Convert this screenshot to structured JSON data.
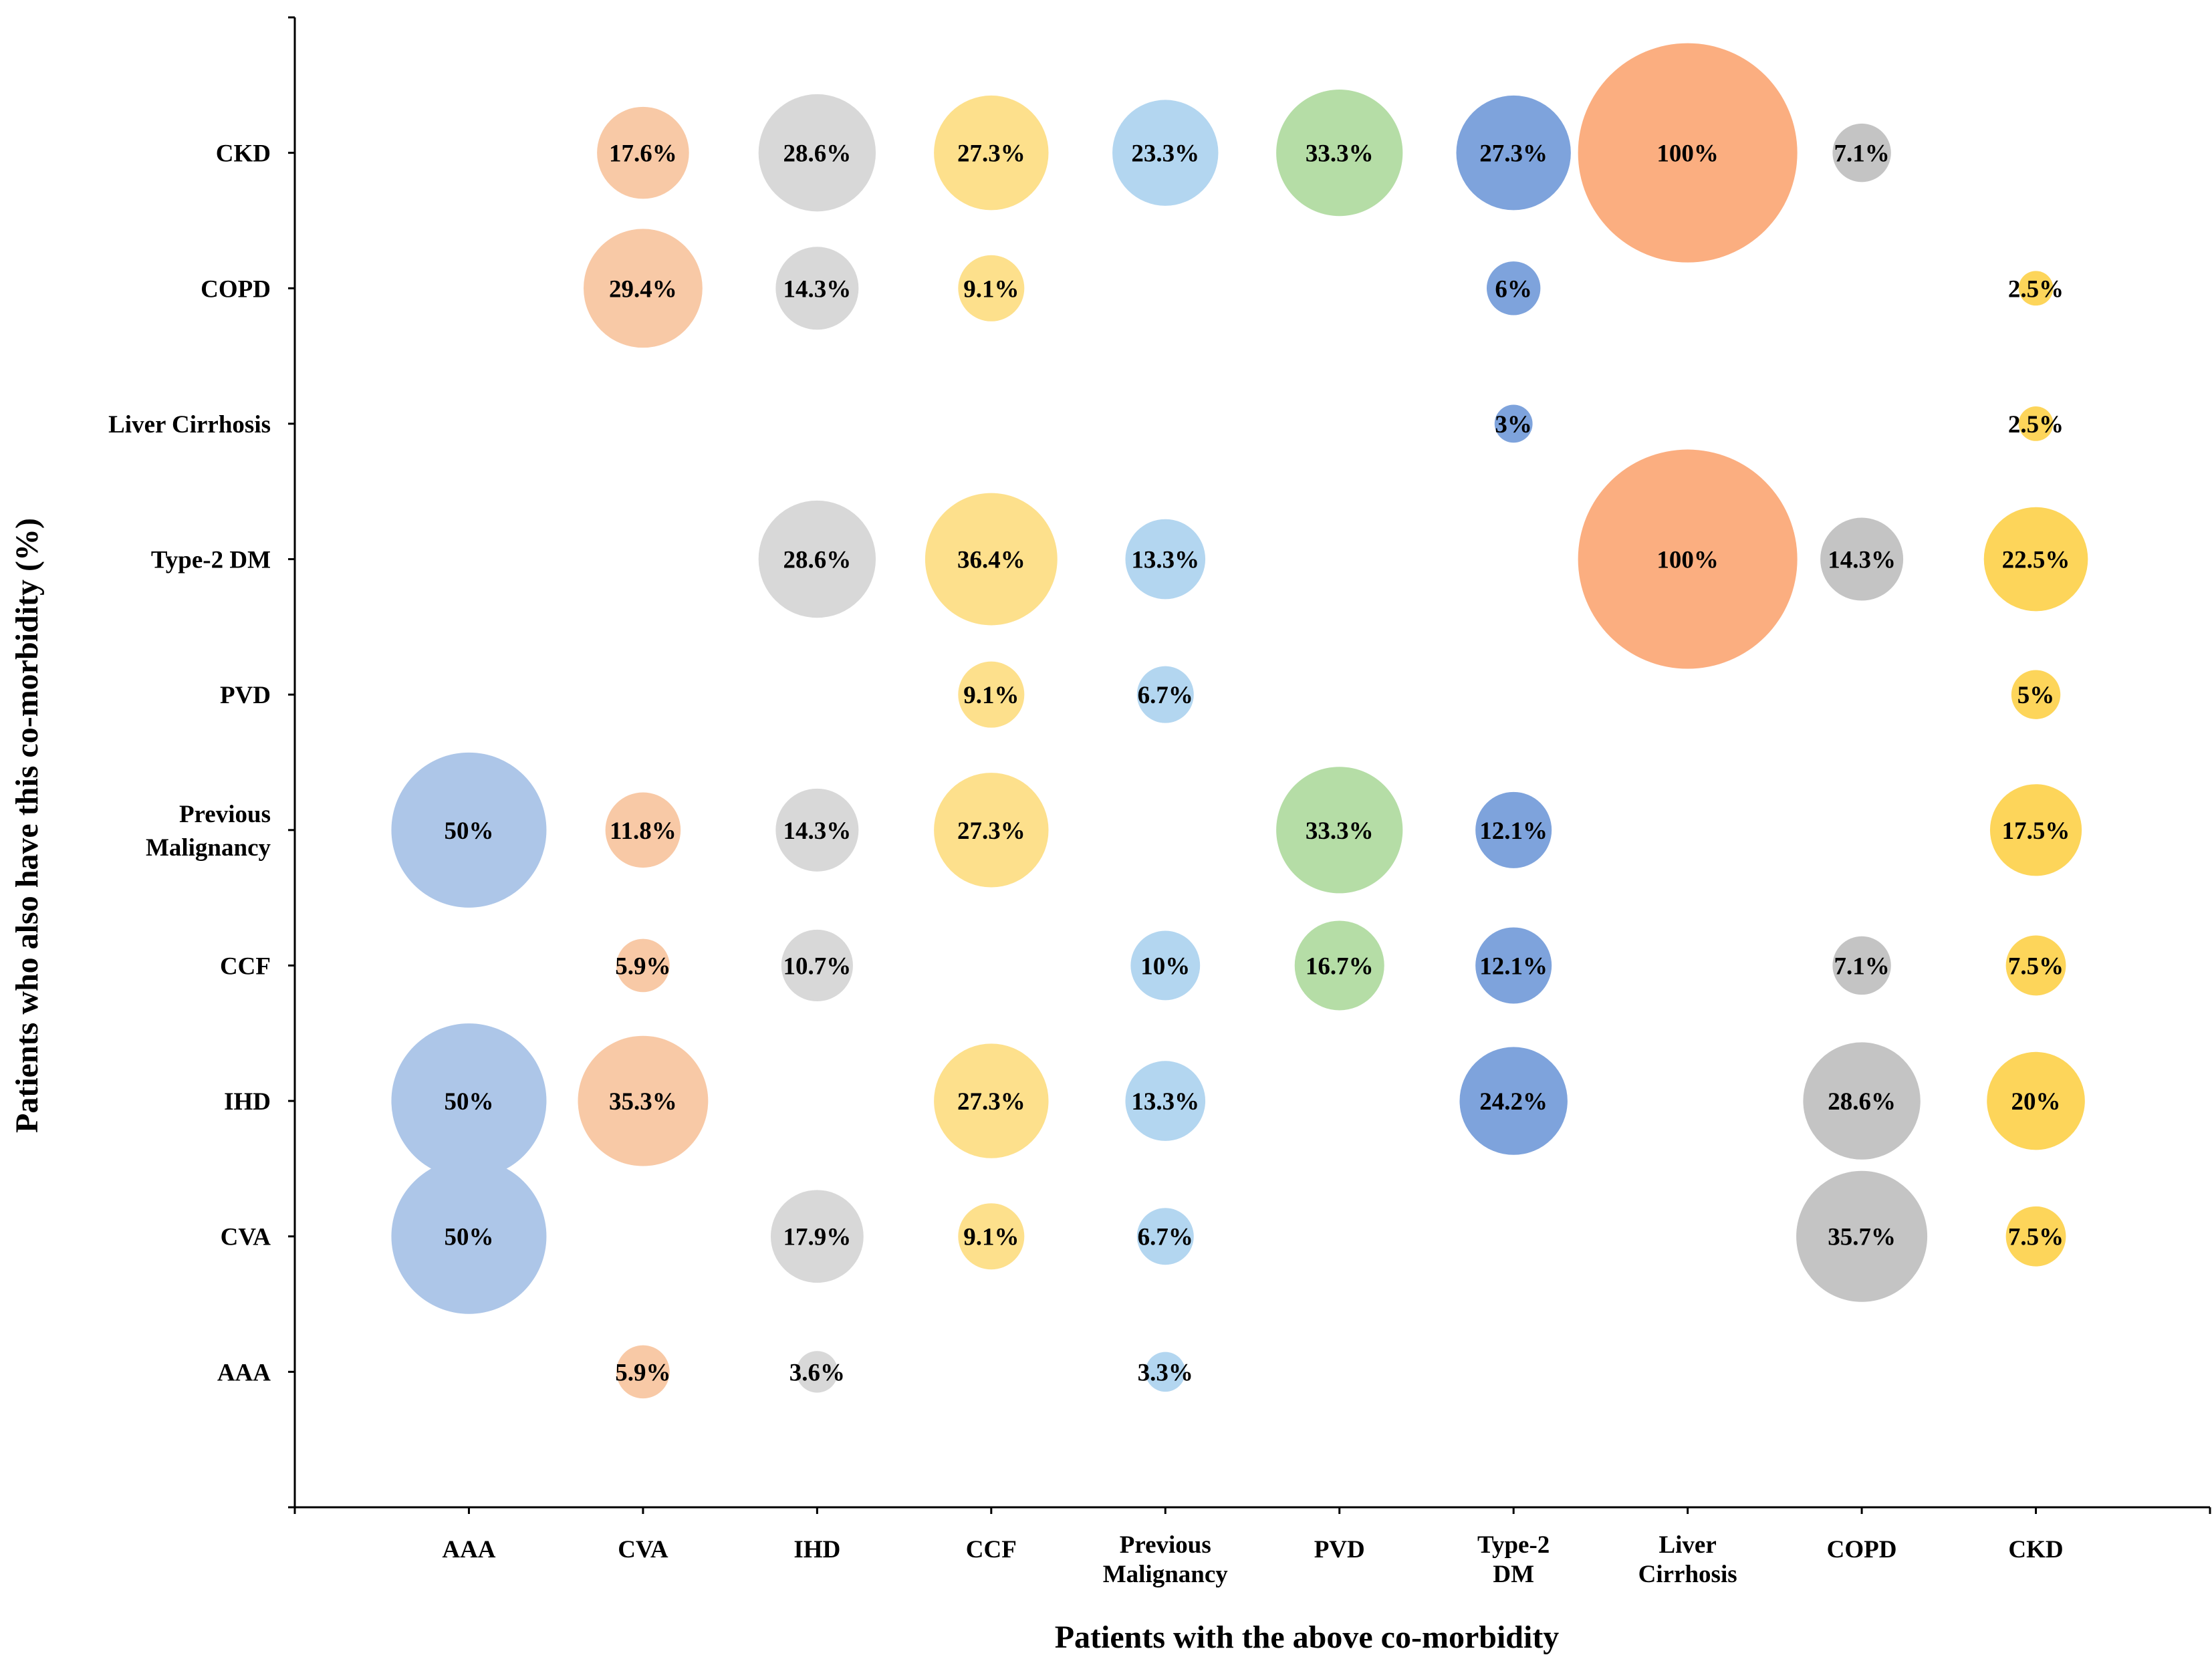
{
  "chart_data": {
    "type": "bubble",
    "title": "",
    "xlabel": "Patients with the above co-morbidity",
    "ylabel": "Patients who also have this  co-morbidity (%)",
    "x_categories": [
      [
        "AAA"
      ],
      [
        "CVA"
      ],
      [
        "IHD"
      ],
      [
        "CCF"
      ],
      [
        "Previous",
        "Malignancy"
      ],
      [
        "PVD"
      ],
      [
        "Type-2",
        "DM"
      ],
      [
        "Liver",
        "Cirrhosis"
      ],
      [
        "COPD"
      ],
      [
        "CKD"
      ]
    ],
    "y_categories": [
      [
        "AAA"
      ],
      [
        "CVA"
      ],
      [
        "IHD"
      ],
      [
        "CCF"
      ],
      [
        "Previous",
        "Malignancy"
      ],
      [
        "PVD"
      ],
      [
        "Type-2 DM"
      ],
      [
        "Liver Cirrhosis"
      ],
      [
        "COPD"
      ],
      [
        "CKD"
      ]
    ],
    "series_colors": [
      "#adc6e8",
      "#f8c9a6",
      "#d8d8d8",
      "#fde08c",
      "#b3d6f0",
      "#b5dda6",
      "#7ea3dc",
      "#fbae80",
      "#c4c4c4",
      "#fdd55a"
    ],
    "points": [
      {
        "x": 0,
        "y": 4,
        "value": 50,
        "label": "50%"
      },
      {
        "x": 0,
        "y": 2,
        "value": 50,
        "label": "50%"
      },
      {
        "x": 0,
        "y": 1,
        "value": 50,
        "label": "50%"
      },
      {
        "x": 1,
        "y": 9,
        "value": 17.6,
        "label": "17.6%"
      },
      {
        "x": 1,
        "y": 8,
        "value": 29.4,
        "label": "29.4%"
      },
      {
        "x": 1,
        "y": 4,
        "value": 11.8,
        "label": "11.8%"
      },
      {
        "x": 1,
        "y": 3,
        "value": 5.9,
        "label": "5.9%"
      },
      {
        "x": 1,
        "y": 2,
        "value": 35.3,
        "label": "35.3%"
      },
      {
        "x": 1,
        "y": 0,
        "value": 5.9,
        "label": "5.9%"
      },
      {
        "x": 2,
        "y": 9,
        "value": 28.6,
        "label": "28.6%"
      },
      {
        "x": 2,
        "y": 8,
        "value": 14.3,
        "label": "14.3%"
      },
      {
        "x": 2,
        "y": 6,
        "value": 28.6,
        "label": "28.6%"
      },
      {
        "x": 2,
        "y": 4,
        "value": 14.3,
        "label": "14.3%"
      },
      {
        "x": 2,
        "y": 3,
        "value": 10.7,
        "label": "10.7%"
      },
      {
        "x": 2,
        "y": 1,
        "value": 17.9,
        "label": "17.9%"
      },
      {
        "x": 2,
        "y": 0,
        "value": 3.6,
        "label": "3.6%"
      },
      {
        "x": 3,
        "y": 9,
        "value": 27.3,
        "label": "27.3%"
      },
      {
        "x": 3,
        "y": 8,
        "value": 9.1,
        "label": "9.1%"
      },
      {
        "x": 3,
        "y": 6,
        "value": 36.4,
        "label": "36.4%"
      },
      {
        "x": 3,
        "y": 5,
        "value": 9.1,
        "label": "9.1%"
      },
      {
        "x": 3,
        "y": 4,
        "value": 27.3,
        "label": "27.3%"
      },
      {
        "x": 3,
        "y": 2,
        "value": 27.3,
        "label": "27.3%"
      },
      {
        "x": 3,
        "y": 1,
        "value": 9.1,
        "label": "9.1%"
      },
      {
        "x": 4,
        "y": 9,
        "value": 23.3,
        "label": "23.3%"
      },
      {
        "x": 4,
        "y": 6,
        "value": 13.3,
        "label": "13.3%"
      },
      {
        "x": 4,
        "y": 5,
        "value": 6.7,
        "label": "6.7%"
      },
      {
        "x": 4,
        "y": 3,
        "value": 10,
        "label": "10%"
      },
      {
        "x": 4,
        "y": 2,
        "value": 13.3,
        "label": "13.3%"
      },
      {
        "x": 4,
        "y": 1,
        "value": 6.7,
        "label": "6.7%"
      },
      {
        "x": 4,
        "y": 0,
        "value": 3.3,
        "label": "3.3%"
      },
      {
        "x": 5,
        "y": 9,
        "value": 33.3,
        "label": "33.3%"
      },
      {
        "x": 5,
        "y": 4,
        "value": 33.3,
        "label": "33.3%"
      },
      {
        "x": 5,
        "y": 3,
        "value": 16.7,
        "label": "16.7%"
      },
      {
        "x": 6,
        "y": 9,
        "value": 27.3,
        "label": "27.3%"
      },
      {
        "x": 6,
        "y": 8,
        "value": 6,
        "label": "6%"
      },
      {
        "x": 6,
        "y": 7,
        "value": 3,
        "label": "3%"
      },
      {
        "x": 6,
        "y": 4,
        "value": 12.1,
        "label": "12.1%"
      },
      {
        "x": 6,
        "y": 3,
        "value": 12.1,
        "label": "12.1%"
      },
      {
        "x": 6,
        "y": 2,
        "value": 24.2,
        "label": "24.2%"
      },
      {
        "x": 7,
        "y": 9,
        "value": 100,
        "label": "100%"
      },
      {
        "x": 7,
        "y": 6,
        "value": 100,
        "label": "100%"
      },
      {
        "x": 8,
        "y": 9,
        "value": 7.1,
        "label": "7.1%"
      },
      {
        "x": 8,
        "y": 6,
        "value": 14.3,
        "label": "14.3%"
      },
      {
        "x": 8,
        "y": 3,
        "value": 7.1,
        "label": "7.1%"
      },
      {
        "x": 8,
        "y": 2,
        "value": 28.6,
        "label": "28.6%"
      },
      {
        "x": 8,
        "y": 1,
        "value": 35.7,
        "label": "35.7%"
      },
      {
        "x": 9,
        "y": 8,
        "value": 2.5,
        "label": "2.5%"
      },
      {
        "x": 9,
        "y": 7,
        "value": 2.5,
        "label": "2.5%"
      },
      {
        "x": 9,
        "y": 6,
        "value": 22.5,
        "label": "22.5%"
      },
      {
        "x": 9,
        "y": 5,
        "value": 5,
        "label": "5%"
      },
      {
        "x": 9,
        "y": 4,
        "value": 17.5,
        "label": "17.5%"
      },
      {
        "x": 9,
        "y": 3,
        "value": 7.5,
        "label": "7.5%"
      },
      {
        "x": 9,
        "y": 2,
        "value": 20,
        "label": "20%"
      },
      {
        "x": 9,
        "y": 1,
        "value": 7.5,
        "label": "7.5%"
      }
    ],
    "grid": false,
    "legend": "none"
  }
}
